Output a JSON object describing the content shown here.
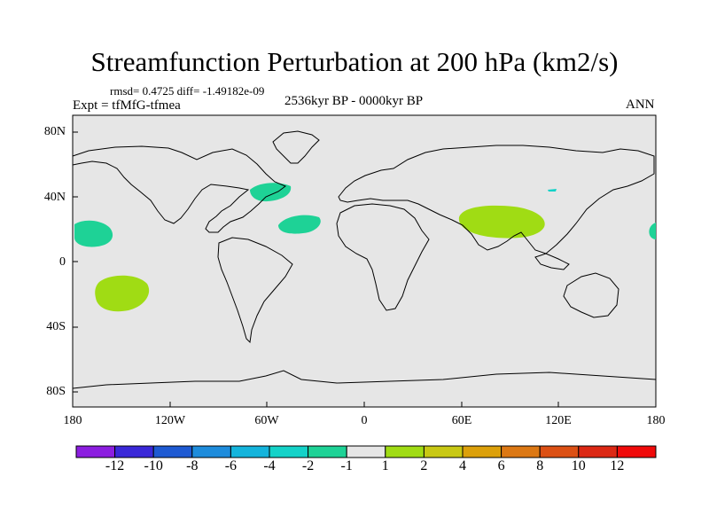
{
  "title": "Streamfunction Perturbation at 200 hPa (km2/s)",
  "stats_text": "rmsd= 0.4725 diff= -1.49182e-09",
  "expt_text": "Expt = tfMfG-tfmea",
  "period_text": "2536kyr BP - 0000kyr BP",
  "season": "ANN",
  "lat_ticks": [
    "80N",
    "40N",
    "0",
    "40S",
    "80S"
  ],
  "lon_ticks": [
    "180",
    "120W",
    "60W",
    "0",
    "60E",
    "120E",
    "180"
  ],
  "colorbar": {
    "labels": [
      "-12",
      "-10",
      "-8",
      "-6",
      "-4",
      "-2",
      "-1",
      "1",
      "2",
      "4",
      "6",
      "8",
      "10",
      "12"
    ],
    "colors": [
      "#8c1ee0",
      "#3a28d8",
      "#1e5ad2",
      "#1e8cdc",
      "#14b4dc",
      "#14d2c8",
      "#1ed296",
      "#e6e6e6",
      "#a0dc14",
      "#c8c814",
      "#dca00a",
      "#dc7814",
      "#dc5014",
      "#dc2814",
      "#f00a0a"
    ]
  },
  "colors": {
    "background": "#e6e6e6",
    "negative_anomaly": "#1ed296",
    "positive_anomaly": "#a0dc14",
    "small_anomaly": "#14d2c8"
  }
}
